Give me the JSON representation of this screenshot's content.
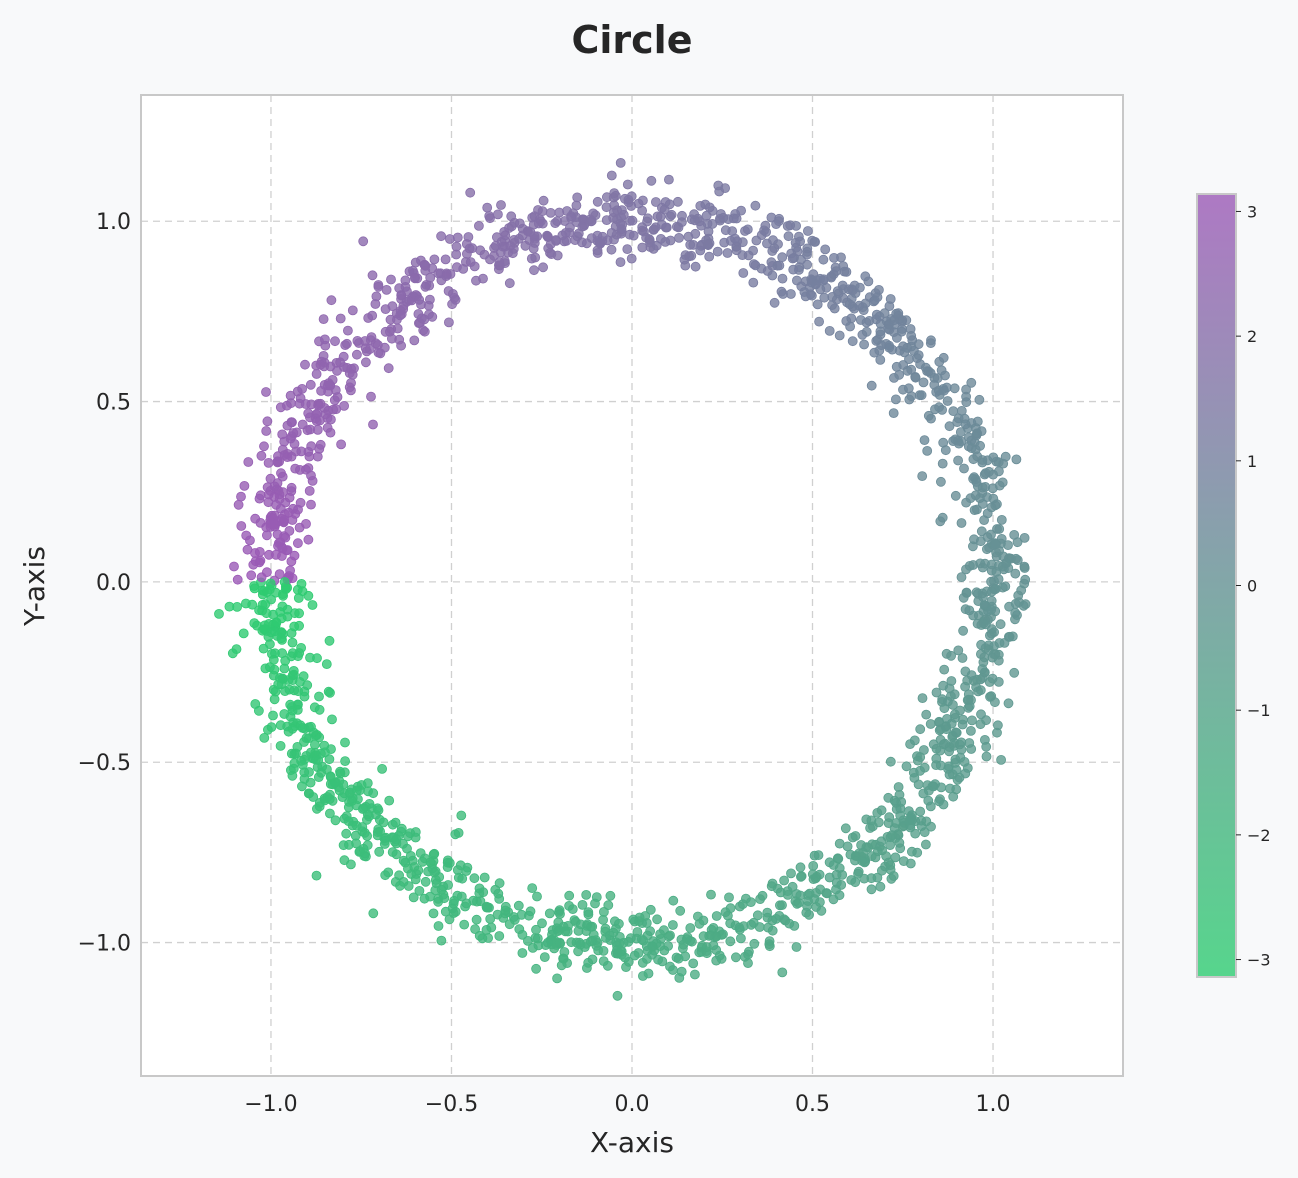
{
  "chart_data": {
    "type": "scatter",
    "title": "Circle",
    "xlabel": "X-axis",
    "ylabel": "Y-axis",
    "xlim": [
      -1.36,
      1.36
    ],
    "ylim": [
      -1.37,
      1.35
    ],
    "xticks": [
      -1.0,
      -0.5,
      0.0,
      0.5,
      1.0
    ],
    "yticks": [
      -1.0,
      -0.5,
      0.0,
      0.5,
      1.0
    ],
    "xtick_labels": [
      "−1.0",
      "−0.5",
      "0.0",
      "0.5",
      "1.0"
    ],
    "ytick_labels": [
      "−1.0",
      "−0.5",
      "0.0",
      "0.5",
      "1.0"
    ],
    "grid": true,
    "grid_style": "dashed",
    "points": {
      "shape": "noisy unit circle",
      "count": 2000,
      "radius": 1.0,
      "noise_std": 0.05,
      "color_by": "angle (radians)"
    },
    "colorbar": {
      "range": [
        -3.14,
        3.14
      ],
      "ticks": [
        3,
        2,
        1,
        0,
        -1,
        -2,
        -3
      ],
      "tick_labels": [
        "3",
        "2",
        "1",
        "0",
        "−1",
        "−2",
        "−3"
      ],
      "color_low": "#2ecc71",
      "color_high": "#9b59b6"
    },
    "point_alpha": 0.8
  },
  "colors": {
    "background": "#f8f9fa",
    "plot_background": "#ffffff",
    "frame": "#c8c8c8",
    "grid": "#d0d0d0"
  }
}
